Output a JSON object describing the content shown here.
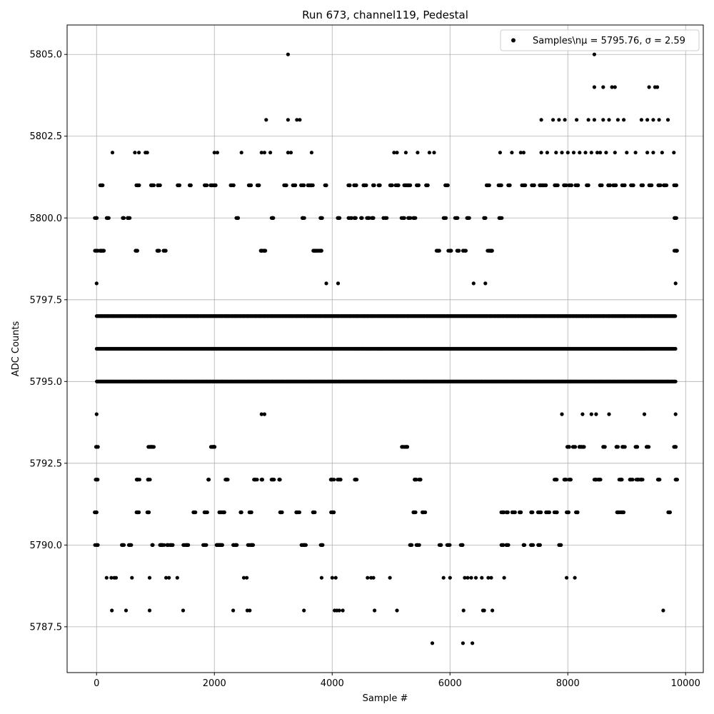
{
  "chart_data": {
    "type": "scatter",
    "title": "Run 673, channel119, Pedestal",
    "xlabel": "Sample #",
    "ylabel": "ADC Counts",
    "xlim": [
      -500,
      10300
    ],
    "ylim": [
      5786.1,
      5805.9
    ],
    "xticks": [
      0,
      2000,
      4000,
      6000,
      8000,
      10000
    ],
    "xtick_labels": [
      "0",
      "2000",
      "4000",
      "6000",
      "8000",
      "10000"
    ],
    "yticks": [
      5787.5,
      5790.0,
      5792.5,
      5795.0,
      5797.5,
      5800.0,
      5802.5,
      5805.0
    ],
    "ytick_labels": [
      "5787.5",
      "5790.0",
      "5792.5",
      "5795.0",
      "5797.5",
      "5800.0",
      "5802.5",
      "5805.0"
    ],
    "grid": true,
    "legend": {
      "position": "top-right",
      "label": "Samples\\n$\\mu$ = 5795.76, $\\sigma$ = 2.59",
      "label_display": "Samples\\nμ = 5795.76, σ = 2.59"
    },
    "marker_color": "#000000",
    "n_samples": 9830,
    "mean": 5795.76,
    "sigma": 2.59,
    "series": [
      {
        "name": "Samples",
        "levels": [
          {
            "y": 5787,
            "x": [
              5700,
              6220,
              6380
            ]
          },
          {
            "y": 5788,
            "x": [
              260,
              500,
              900,
              1470,
              2320,
              2560,
              2600,
              3520,
              4040,
              4080,
              4120,
              4180,
              4720,
              5100,
              6230,
              6560,
              6580,
              6720,
              9620
            ]
          },
          {
            "y": 5789,
            "x": [
              170,
              250,
              300,
              330,
              600,
              900,
              1180,
              1230,
              1370,
              2500,
              2550,
              3820,
              4000,
              4060,
              4600,
              4660,
              4700,
              4980,
              5890,
              6000,
              6250,
              6300,
              6360,
              6440,
              6540,
              6650,
              6700,
              6920,
              7980,
              8120
            ]
          },
          {
            "y": 5790,
            "x": [
              0,
              2100,
              450,
              560,
              950,
              1090,
              1120,
              1220,
              1270,
              1500,
              1530,
              1840,
              2040,
              2090,
              2130,
              2330,
              2360,
              2600,
              2650,
              3500,
              3540,
              3820,
              5350,
              5450,
              5820,
              5980,
              6200,
              6900,
              6980,
              7250,
              7400,
              7500,
              7880
            ]
          },
          {
            "y": 5791,
            "x": [
              0,
              700,
              880,
              1650,
              1860,
              2100,
              2170,
              2460,
              2620,
              3140,
              3420,
              3680,
              4000,
              5400,
              5550,
              6900,
              6960,
              7080,
              7200,
              7400,
              7520,
              7660,
              7800,
              8000,
              8140,
              8860,
              8920,
              9720
            ]
          },
          {
            "y": 5792,
            "x": [
              0,
              700,
              880,
              1900,
              2200,
              2700,
              2800,
              3000,
              3100,
              4000,
              4120,
              4400,
              5400,
              5500,
              7800,
              7950,
              8050,
              8480,
              8540,
              8900,
              9080,
              9180,
              9250,
              9550,
              9830
            ]
          },
          {
            "y": 5793,
            "x": [
              0,
              900,
              950,
              1950,
              2000,
              5200,
              5250,
              8000,
              8100,
              8200,
              8250,
              8600,
              8850,
              8950,
              9150,
              9350,
              9830
            ]
          },
          {
            "y": 5794,
            "x": [
              0,
              2800,
              2850,
              7900,
              8250,
              8400,
              8480,
              8700,
              9300,
              9830
            ]
          },
          {
            "y": 5795,
            "x": [
              0,
              9830
            ]
          },
          {
            "y": 5796,
            "x": [
              0,
              9830
            ]
          },
          {
            "y": 5797,
            "x": [
              0,
              9830
            ]
          },
          {
            "y": 5798,
            "x": [
              0,
              3900,
              4100,
              6400,
              6600,
              9830
            ]
          },
          {
            "y": 5799,
            "x": [
              0,
              80,
              100,
              690,
              1050,
              1150,
              2800,
              2850,
              3700,
              3750,
              3800,
              5800,
              6000,
              6150,
              6250,
              6660,
              6700,
              9830
            ]
          },
          {
            "y": 5800,
            "x": [
              0,
              200,
              450,
              550,
              2400,
              3000,
              3500,
              3800,
              4100,
              4300,
              4400,
              4500,
              4600,
              4700,
              4900,
              5200,
              5300,
              5400,
              5900,
              6100,
              6300,
              6600,
              6850,
              9830
            ]
          },
          {
            "y": 5801,
            "x": [
              80,
              700,
              950,
              1050,
              1400,
              1600,
              1850,
              1950,
              2000,
              2300,
              2600,
              2750,
              3200,
              3350,
              3500,
              3600,
              3650,
              3900,
              4300,
              4400,
              4550,
              4700,
              4800,
              5000,
              5100,
              5250,
              5300,
              5450,
              5600,
              5950,
              6650,
              6850,
              7000,
              7250,
              7400,
              7550,
              7600,
              7800,
              7950,
              8050,
              8150,
              8350,
              8550,
              8700,
              8800,
              8950,
              9100,
              9250,
              9400,
              9550,
              9650,
              9830
            ]
          },
          {
            "y": 5802,
            "x": [
              270,
              650,
              720,
              830,
              860,
              2000,
              2050,
              2460,
              2800,
              2850,
              2950,
              3250,
              3300,
              3650,
              5050,
              5100,
              5250,
              5450,
              5650,
              5730,
              6850,
              7050,
              7200,
              7250,
              7550,
              7650,
              7800,
              7900,
              8000,
              8100,
              8200,
              8300,
              8400,
              8500,
              8550,
              8650,
              8800,
              9000,
              9150,
              9350,
              9450,
              9600,
              9800
            ]
          },
          {
            "y": 5803,
            "x": [
              2880,
              3250,
              3400,
              3450,
              7550,
              7750,
              7850,
              7950,
              8150,
              8350,
              8450,
              8600,
              8700,
              8850,
              8950,
              9250,
              9350,
              9450,
              9550,
              9700
            ]
          },
          {
            "y": 5804,
            "x": [
              8450,
              8600,
              8750,
              8800,
              9380,
              9480,
              9520
            ]
          },
          {
            "y": 5805,
            "x": [
              3250,
              8450
            ]
          }
        ]
      }
    ]
  }
}
